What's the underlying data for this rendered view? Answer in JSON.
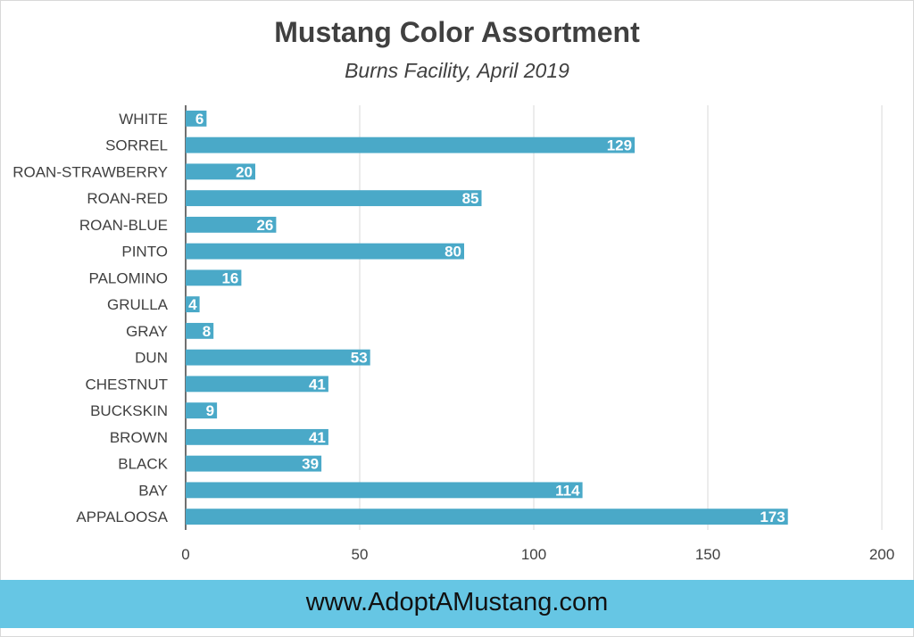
{
  "colors": {
    "bar": "#4aa9c8",
    "grid": "#d9d9d9",
    "axis_text": "#404040",
    "data_label": "#ffffff",
    "footer_band": "#66c6e4"
  },
  "footer": {
    "url": "www.AdoptAMustang.com"
  },
  "chart_data": {
    "type": "bar",
    "orientation": "horizontal",
    "title": "Mustang Color Assortment",
    "subtitle": "Burns Facility, April 2019",
    "xlabel": "",
    "ylabel": "",
    "xlim": [
      0,
      200
    ],
    "xticks": [
      0,
      50,
      100,
      150,
      200
    ],
    "grid": true,
    "legend": "none",
    "categories": [
      "WHITE",
      "SORREL",
      "ROAN-STRAWBERRY",
      "ROAN-RED",
      "ROAN-BLUE",
      "PINTO",
      "PALOMINO",
      "GRULLA",
      "GRAY",
      "DUN",
      "CHESTNUT",
      "BUCKSKIN",
      "BROWN",
      "BLACK",
      "BAY",
      "APPALOOSA"
    ],
    "values": [
      6,
      129,
      20,
      85,
      26,
      80,
      16,
      4,
      8,
      53,
      41,
      9,
      41,
      39,
      114,
      173
    ],
    "data_labels": [
      "6",
      "129",
      "20",
      "85",
      "26",
      "80",
      "16",
      "4",
      "8",
      "53",
      "41",
      "9",
      "41",
      "39",
      "114",
      "173"
    ]
  }
}
